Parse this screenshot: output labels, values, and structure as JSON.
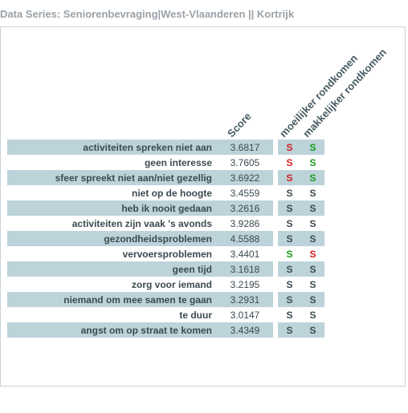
{
  "title": "Data Series: Seniorenbevraging|West-Vlaanderen || Kortrijk",
  "headers": {
    "score": "Score",
    "c1": "moeilijker rondkomen",
    "c2": "makkelijker rondkomen"
  },
  "colors": {
    "band": "#bcd3da",
    "title": "#9aa1a7",
    "text": "#3c4a50",
    "red": "#d02020",
    "green": "#1a9a1a",
    "border": "#c9d3d9"
  },
  "rows": [
    {
      "label": "activiteiten spreken niet aan",
      "score": "3.6817",
      "c1": "red",
      "c2": "green"
    },
    {
      "label": "geen interesse",
      "score": "3.7605",
      "c1": "red",
      "c2": "green"
    },
    {
      "label": "sfeer spreekt niet aan/niet gezellig",
      "score": "3.6922",
      "c1": "red",
      "c2": "green"
    },
    {
      "label": "niet op de hoogte",
      "score": "3.4559",
      "c1": "plain",
      "c2": "plain"
    },
    {
      "label": "heb ik nooit gedaan",
      "score": "3.2616",
      "c1": "plain",
      "c2": "plain"
    },
    {
      "label": "activiteiten zijn vaak 's avonds",
      "score": "3.9286",
      "c1": "plain",
      "c2": "plain"
    },
    {
      "label": "gezondheidsproblemen",
      "score": "4.5588",
      "c1": "plain",
      "c2": "plain"
    },
    {
      "label": "vervoersproblemen",
      "score": "3.4401",
      "c1": "green",
      "c2": "red"
    },
    {
      "label": "geen tijd",
      "score": "3.1618",
      "c1": "plain",
      "c2": "plain"
    },
    {
      "label": "zorg voor iemand",
      "score": "3.2195",
      "c1": "plain",
      "c2": "plain"
    },
    {
      "label": "niemand om mee samen te gaan",
      "score": "3.2931",
      "c1": "plain",
      "c2": "plain"
    },
    {
      "label": "te duur",
      "score": "3.0147",
      "c1": "plain",
      "c2": "plain"
    },
    {
      "label": "angst om op straat te komen",
      "score": "3.4349",
      "c1": "plain",
      "c2": "plain"
    }
  ],
  "sig_letter": "S"
}
